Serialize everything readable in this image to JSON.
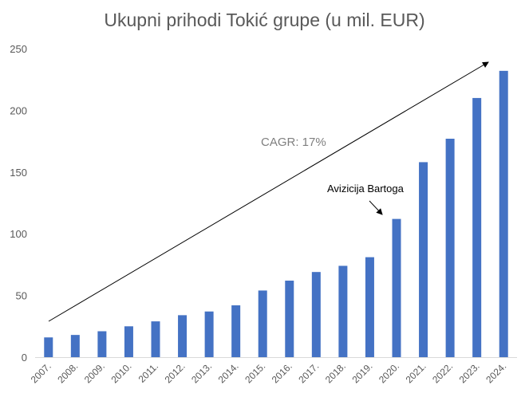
{
  "chart_data": {
    "type": "bar",
    "title": "Ukupni prihodi Tokić grupe (u mil. EUR)",
    "categories": [
      "2007.",
      "2008.",
      "2009.",
      "2010.",
      "2011.",
      "2012.",
      "2013.",
      "2014.",
      "2015.",
      "2016.",
      "2017.",
      "2018.",
      "2019.",
      "2020.",
      "2021.",
      "2022.",
      "2023.",
      "2024."
    ],
    "values": [
      16,
      18,
      21,
      25,
      29,
      34,
      37,
      42,
      54,
      62,
      69,
      74,
      81,
      112,
      158,
      177,
      210,
      232
    ],
    "ylim": [
      0,
      250
    ],
    "yticks": [
      0,
      50,
      100,
      150,
      200,
      250
    ],
    "grid": false,
    "bar_color": "#4472C4",
    "annotations": {
      "cagr": "CAGR: 17%",
      "acquisition": "Avizicija Bartoga"
    }
  }
}
